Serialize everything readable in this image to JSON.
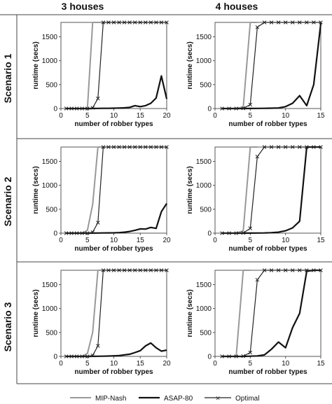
{
  "colors": {
    "mip_nash": "#999999",
    "asap_80": "#111111",
    "optimal": "#222222",
    "frame": "#444444"
  },
  "column_titles": [
    "3 houses",
    "4 houses"
  ],
  "row_titles": [
    "Scenario 1",
    "Scenario 2",
    "Scenario 3"
  ],
  "legend": {
    "mip_nash": "MIP-Nash",
    "asap_80": "ASAP-80",
    "optimal": "Optimal"
  },
  "chart_data": [
    {
      "type": "line",
      "xlabel": "number of robber types",
      "ylabel": "runtime (secs)",
      "xlim": [
        0,
        20
      ],
      "ylim": [
        0,
        1800
      ],
      "xticks": [
        0,
        5,
        10,
        15,
        20
      ],
      "yticks": [
        0,
        500,
        1000,
        1500
      ],
      "series": [
        {
          "name": "MIP-Nash",
          "x": [
            1,
            2,
            3,
            4,
            5,
            6,
            7,
            8
          ],
          "y": [
            0,
            0,
            0,
            0,
            0,
            1800,
            1800,
            1800
          ]
        },
        {
          "name": "ASAP-80",
          "x": [
            1,
            2,
            3,
            4,
            5,
            6,
            7,
            8,
            9,
            10,
            11,
            12,
            13,
            14,
            15,
            16,
            17,
            18,
            19,
            20
          ],
          "y": [
            0,
            0,
            0,
            0,
            0,
            2,
            3,
            4,
            5,
            8,
            10,
            15,
            25,
            60,
            40,
            60,
            110,
            220,
            680,
            200
          ]
        },
        {
          "name": "Optimal",
          "x": [
            1,
            2,
            3,
            4,
            5,
            6,
            7,
            8,
            9,
            10,
            11,
            12,
            13,
            14,
            15,
            16,
            17,
            18,
            19,
            20
          ],
          "y": [
            0,
            0,
            0,
            0,
            0,
            15,
            210,
            1800,
            1800,
            1800,
            1800,
            1800,
            1800,
            1800,
            1800,
            1800,
            1800,
            1800,
            1800,
            1800
          ]
        }
      ]
    },
    {
      "type": "line",
      "xlabel": "number of robber types",
      "ylabel": "runtime (secs)",
      "xlim": [
        0,
        15
      ],
      "ylim": [
        0,
        1800
      ],
      "xticks": [
        0,
        5,
        10,
        15
      ],
      "yticks": [
        0,
        500,
        1000,
        1500
      ],
      "series": [
        {
          "name": "MIP-Nash",
          "x": [
            1,
            2,
            3,
            4,
            5,
            6
          ],
          "y": [
            0,
            0,
            0,
            30,
            1800,
            1800
          ]
        },
        {
          "name": "ASAP-80",
          "x": [
            1,
            2,
            3,
            4,
            5,
            6,
            7,
            8,
            9,
            10,
            11,
            12,
            13,
            14,
            15
          ],
          "y": [
            0,
            0,
            0,
            0,
            1,
            3,
            5,
            8,
            12,
            40,
            110,
            270,
            60,
            500,
            1780
          ]
        },
        {
          "name": "Optimal",
          "x": [
            1,
            2,
            3,
            4,
            5,
            6,
            7,
            8,
            9,
            10,
            11,
            12,
            13,
            14,
            15
          ],
          "y": [
            0,
            0,
            0,
            5,
            80,
            1700,
            1800,
            1800,
            1800,
            1800,
            1800,
            1800,
            1800,
            1800,
            1800
          ]
        }
      ]
    },
    {
      "type": "line",
      "xlabel": "number of robber types",
      "ylabel": "runtime (secs)",
      "xlim": [
        0,
        20
      ],
      "ylim": [
        0,
        1800
      ],
      "xticks": [
        0,
        5,
        10,
        15,
        20
      ],
      "yticks": [
        0,
        500,
        1000,
        1500
      ],
      "series": [
        {
          "name": "MIP-Nash",
          "x": [
            1,
            2,
            3,
            4,
            5,
            6,
            7,
            8
          ],
          "y": [
            0,
            0,
            0,
            0,
            60,
            600,
            1800,
            1800
          ]
        },
        {
          "name": "ASAP-80",
          "x": [
            1,
            2,
            3,
            4,
            5,
            6,
            7,
            8,
            9,
            10,
            11,
            12,
            13,
            14,
            15,
            16,
            17,
            18,
            19,
            20
          ],
          "y": [
            0,
            0,
            0,
            0,
            0,
            2,
            3,
            4,
            6,
            8,
            12,
            20,
            35,
            60,
            90,
            85,
            120,
            100,
            450,
            620
          ]
        },
        {
          "name": "Optimal",
          "x": [
            1,
            2,
            3,
            4,
            5,
            6,
            7,
            8,
            9,
            10,
            11,
            12,
            13,
            14,
            15,
            16,
            17,
            18,
            19,
            20
          ],
          "y": [
            0,
            0,
            0,
            0,
            0,
            20,
            220,
            1800,
            1800,
            1800,
            1800,
            1800,
            1800,
            1800,
            1800,
            1800,
            1800,
            1800,
            1800,
            1800
          ]
        }
      ]
    },
    {
      "type": "line",
      "xlabel": "number of robber types",
      "ylabel": "runtime (secs)",
      "xlim": [
        0,
        15
      ],
      "ylim": [
        0,
        1800
      ],
      "xticks": [
        0,
        5,
        10,
        15
      ],
      "yticks": [
        0,
        500,
        1000,
        1500
      ],
      "series": [
        {
          "name": "MIP-Nash",
          "x": [
            1,
            2,
            3,
            4,
            5,
            6
          ],
          "y": [
            0,
            0,
            0,
            50,
            1800,
            1800
          ]
        },
        {
          "name": "ASAP-80",
          "x": [
            1,
            2,
            3,
            4,
            5,
            6,
            7,
            8,
            9,
            10,
            11,
            12,
            13,
            14,
            15
          ],
          "y": [
            0,
            0,
            0,
            0,
            1,
            3,
            5,
            10,
            20,
            50,
            110,
            250,
            1800,
            1800,
            1800
          ]
        },
        {
          "name": "Optimal",
          "x": [
            1,
            2,
            3,
            4,
            5,
            6,
            7,
            8,
            9,
            10,
            11,
            12,
            13,
            14,
            15
          ],
          "y": [
            0,
            0,
            0,
            5,
            100,
            1600,
            1800,
            1800,
            1800,
            1800,
            1800,
            1800,
            1800,
            1800,
            1800
          ]
        }
      ]
    },
    {
      "type": "line",
      "xlabel": "number of robber types",
      "ylabel": "runtime (secs)",
      "xlim": [
        0,
        20
      ],
      "ylim": [
        0,
        1800
      ],
      "xticks": [
        0,
        5,
        10,
        15,
        20
      ],
      "yticks": [
        0,
        500,
        1000,
        1500
      ],
      "series": [
        {
          "name": "MIP-Nash",
          "x": [
            1,
            2,
            3,
            4,
            5,
            6,
            7,
            8
          ],
          "y": [
            0,
            0,
            0,
            0,
            60,
            500,
            1800,
            1800
          ]
        },
        {
          "name": "ASAP-80",
          "x": [
            1,
            2,
            3,
            4,
            5,
            6,
            7,
            8,
            9,
            10,
            11,
            12,
            13,
            14,
            15,
            16,
            17,
            18,
            19,
            20
          ],
          "y": [
            0,
            0,
            0,
            0,
            0,
            2,
            3,
            5,
            8,
            12,
            18,
            30,
            45,
            80,
            120,
            220,
            280,
            180,
            110,
            130
          ]
        },
        {
          "name": "Optimal",
          "x": [
            1,
            2,
            3,
            4,
            5,
            6,
            7,
            8,
            9,
            10,
            11,
            12,
            13,
            14,
            15,
            16,
            17,
            18,
            19,
            20
          ],
          "y": [
            0,
            0,
            0,
            0,
            0,
            20,
            220,
            1800,
            1800,
            1800,
            1800,
            1800,
            1800,
            1800,
            1800,
            1800,
            1800,
            1800,
            1800,
            1800
          ]
        }
      ]
    },
    {
      "type": "line",
      "xlabel": "number of robber types",
      "ylabel": "runtime (secs)",
      "xlim": [
        0,
        15
      ],
      "ylim": [
        0,
        1800
      ],
      "xticks": [
        0,
        5,
        10,
        15
      ],
      "yticks": [
        0,
        500,
        1000,
        1500
      ],
      "series": [
        {
          "name": "MIP-Nash",
          "x": [
            1,
            2,
            3,
            4,
            5
          ],
          "y": [
            0,
            0,
            0,
            1800,
            1800
          ]
        },
        {
          "name": "ASAP-80",
          "x": [
            1,
            2,
            3,
            4,
            5,
            6,
            7,
            8,
            9,
            10,
            11,
            12,
            13,
            14,
            15
          ],
          "y": [
            0,
            0,
            0,
            0,
            5,
            10,
            30,
            150,
            300,
            180,
            600,
            900,
            1780,
            1800,
            1800
          ]
        },
        {
          "name": "Optimal",
          "x": [
            1,
            2,
            3,
            4,
            5,
            6,
            7,
            8,
            9,
            10,
            11,
            12,
            13,
            14,
            15
          ],
          "y": [
            0,
            0,
            0,
            5,
            80,
            1600,
            1800,
            1800,
            1800,
            1800,
            1800,
            1800,
            1800,
            1800,
            1800
          ]
        }
      ]
    }
  ]
}
